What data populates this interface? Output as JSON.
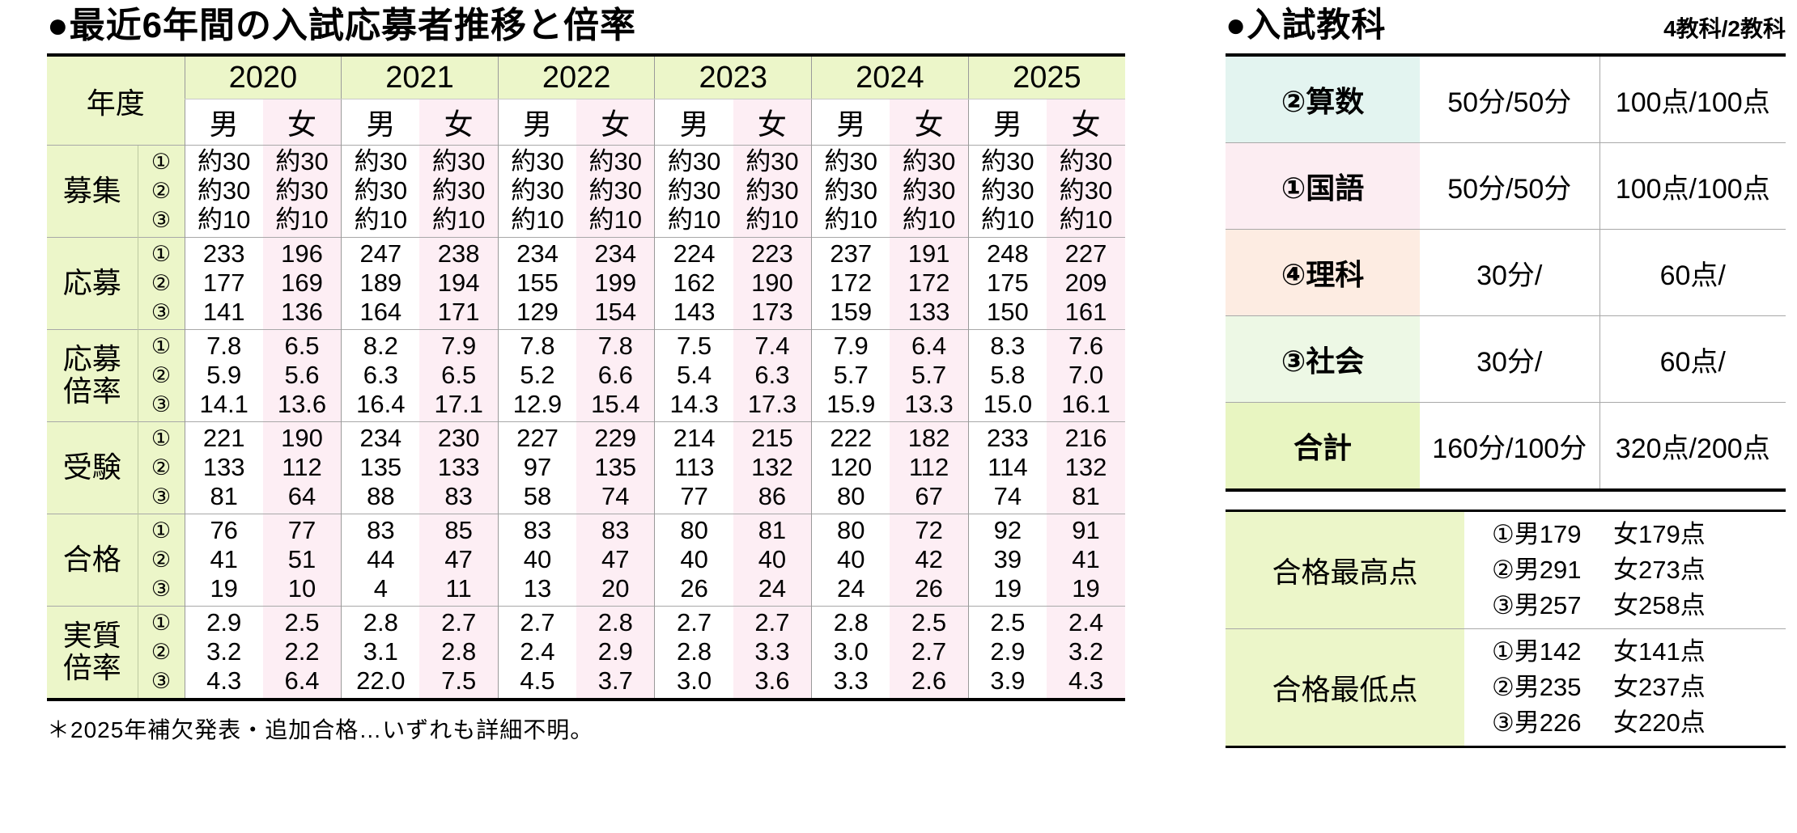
{
  "left_table": {
    "title": "●最近6年間の入試応募者推移と倍率",
    "year_header_label": "年度",
    "years": [
      "2020",
      "2021",
      "2022",
      "2023",
      "2024",
      "2025"
    ],
    "gender_labels": {
      "male": "男",
      "female": "女"
    },
    "line_markers": [
      "①",
      "②",
      "③"
    ],
    "column_order": "2020男,2020女,2021男,2021女,2022男,2022女,2023男,2023女,2024男,2024女,2025男,2025女",
    "row_groups": [
      {
        "key": "bosyu",
        "label": "募集",
        "rows": [
          [
            "約30",
            "約30",
            "約30",
            "約30",
            "約30",
            "約30",
            "約30",
            "約30",
            "約30",
            "約30",
            "約30",
            "約30"
          ],
          [
            "約30",
            "約30",
            "約30",
            "約30",
            "約30",
            "約30",
            "約30",
            "約30",
            "約30",
            "約30",
            "約30",
            "約30"
          ],
          [
            "約10",
            "約10",
            "約10",
            "約10",
            "約10",
            "約10",
            "約10",
            "約10",
            "約10",
            "約10",
            "約10",
            "約10"
          ]
        ]
      },
      {
        "key": "obo",
        "label": "応募",
        "rows": [
          [
            "233",
            "196",
            "247",
            "238",
            "234",
            "234",
            "224",
            "223",
            "237",
            "191",
            "248",
            "227"
          ],
          [
            "177",
            "169",
            "189",
            "194",
            "155",
            "199",
            "162",
            "190",
            "172",
            "172",
            "175",
            "209"
          ],
          [
            "141",
            "136",
            "164",
            "171",
            "129",
            "154",
            "143",
            "173",
            "159",
            "133",
            "150",
            "161"
          ]
        ]
      },
      {
        "key": "obo-bairitsu",
        "label": "応募\n倍率",
        "rows": [
          [
            "7.8",
            "6.5",
            "8.2",
            "7.9",
            "7.8",
            "7.8",
            "7.5",
            "7.4",
            "7.9",
            "6.4",
            "8.3",
            "7.6"
          ],
          [
            "5.9",
            "5.6",
            "6.3",
            "6.5",
            "5.2",
            "6.6",
            "5.4",
            "6.3",
            "5.7",
            "5.7",
            "5.8",
            "7.0"
          ],
          [
            "14.1",
            "13.6",
            "16.4",
            "17.1",
            "12.9",
            "15.4",
            "14.3",
            "17.3",
            "15.9",
            "13.3",
            "15.0",
            "16.1"
          ]
        ]
      },
      {
        "key": "juken",
        "label": "受験",
        "rows": [
          [
            "221",
            "190",
            "234",
            "230",
            "227",
            "229",
            "214",
            "215",
            "222",
            "182",
            "233",
            "216"
          ],
          [
            "133",
            "112",
            "135",
            "133",
            "97",
            "135",
            "113",
            "132",
            "120",
            "112",
            "114",
            "132"
          ],
          [
            "81",
            "64",
            "88",
            "83",
            "58",
            "74",
            "77",
            "86",
            "80",
            "67",
            "74",
            "81"
          ]
        ]
      },
      {
        "key": "gokaku",
        "label": "合格",
        "rows": [
          [
            "76",
            "77",
            "83",
            "85",
            "83",
            "83",
            "80",
            "81",
            "80",
            "72",
            "92",
            "91"
          ],
          [
            "41",
            "51",
            "44",
            "47",
            "40",
            "47",
            "40",
            "40",
            "40",
            "42",
            "39",
            "41"
          ],
          [
            "19",
            "10",
            "4",
            "11",
            "13",
            "20",
            "26",
            "24",
            "24",
            "26",
            "19",
            "19"
          ]
        ]
      },
      {
        "key": "jisshitsu-bairitsu",
        "label": "実質\n倍率",
        "rows": [
          [
            "2.9",
            "2.5",
            "2.8",
            "2.7",
            "2.7",
            "2.8",
            "2.7",
            "2.7",
            "2.8",
            "2.5",
            "2.5",
            "2.4"
          ],
          [
            "3.2",
            "2.2",
            "3.1",
            "2.8",
            "2.4",
            "2.9",
            "2.8",
            "3.3",
            "3.0",
            "2.7",
            "2.9",
            "3.2"
          ],
          [
            "4.3",
            "6.4",
            "22.0",
            "7.5",
            "4.5",
            "3.7",
            "3.0",
            "3.6",
            "3.3",
            "2.6",
            "3.9",
            "4.3"
          ]
        ]
      }
    ],
    "footnote": "＊2025年補欠発表・追加合格…いずれも詳細不明。"
  },
  "subjects_table": {
    "title": "●入試教科",
    "corner_note": "4教科/2教科",
    "rows": [
      {
        "subject": "②算数",
        "time": "50分/50分",
        "points": "100点/100点",
        "bg": "bg-cyan"
      },
      {
        "subject": "①国語",
        "time": "50分/50分",
        "points": "100点/100点",
        "bg": "bg-pink"
      },
      {
        "subject": "④理科",
        "time": "30分/",
        "points": "60点/",
        "bg": "bg-peach"
      },
      {
        "subject": "③社会",
        "time": "30分/",
        "points": "60点/",
        "bg": "bg-green"
      },
      {
        "subject": "合計",
        "time": "160分/100分",
        "points": "320点/200点",
        "bg": "bg-lime"
      }
    ]
  },
  "scores_table": {
    "rows": [
      {
        "label": "合格最高点",
        "lines": [
          [
            "①男179",
            "女179点"
          ],
          [
            "②男291",
            "女273点"
          ],
          [
            "③男257",
            "女258点"
          ]
        ]
      },
      {
        "label": "合格最低点",
        "lines": [
          [
            "①男142",
            "女141点"
          ],
          [
            "②男235",
            "女237点"
          ],
          [
            "③男226",
            "女220点"
          ]
        ]
      }
    ]
  },
  "colors": {
    "header_green": "#ecf6c9",
    "female_pink": "#fdeef4",
    "sansu_cyan": "#e3f4f0",
    "kokugo_pink": "#fcedf2",
    "rika_peach": "#fdece2",
    "shakai_green": "#edf8e5",
    "gokei_lime": "#e8f5c1",
    "border_black": "#000000"
  }
}
